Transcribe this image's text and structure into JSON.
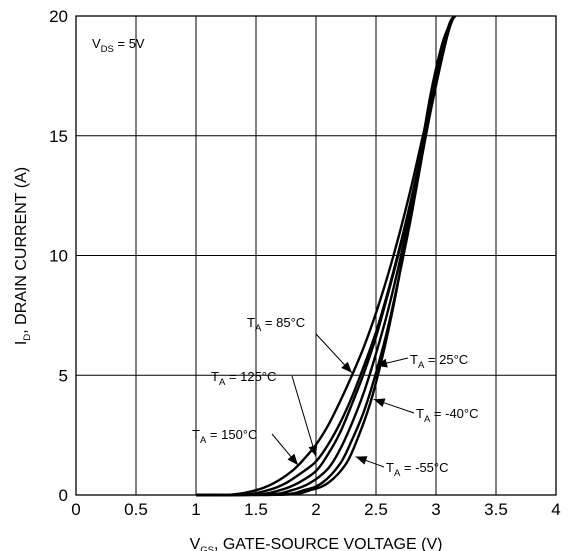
{
  "chart_data": {
    "type": "line",
    "title": "",
    "xlabel": {
      "main": "V",
      "sub": "GS",
      "rest": ", GATE-SOURCE VOLTAGE (V)"
    },
    "ylabel": {
      "main": "I",
      "sub": "D",
      "rest": ", DRAIN CURRENT (A)"
    },
    "xlim": [
      0,
      4
    ],
    "ylim": [
      0,
      20
    ],
    "x_ticks": [
      "0",
      "0.5",
      "1",
      "1.5",
      "2",
      "2.5",
      "3",
      "3.5",
      "4"
    ],
    "y_ticks": [
      "0",
      "5",
      "10",
      "15",
      "20"
    ],
    "grid": true,
    "condition": {
      "main": "V",
      "sub": "DS",
      "rest": " = 5V"
    },
    "series": [
      {
        "name": "T_A = 150°C",
        "label": {
          "main": "T",
          "sub": "A",
          "rest": " = 150°C"
        },
        "x": [
          1.0,
          1.3,
          1.5,
          1.65,
          1.8,
          1.9,
          2.0,
          2.1,
          2.2,
          2.3,
          2.4,
          2.5,
          2.6,
          2.7,
          2.8,
          2.9,
          3.0,
          3.1,
          3.15
        ],
        "y": [
          0.0,
          0.02,
          0.2,
          0.5,
          1.0,
          1.5,
          2.1,
          2.9,
          3.9,
          5.0,
          6.2,
          7.6,
          9.2,
          11.0,
          13.0,
          15.2,
          17.3,
          19.3,
          20.0
        ]
      },
      {
        "name": "T_A = 125°C",
        "label": {
          "main": "T",
          "sub": "A",
          "rest": " = 125°C"
        },
        "x": [
          1.0,
          1.4,
          1.6,
          1.75,
          1.9,
          2.0,
          2.1,
          2.2,
          2.3,
          2.4,
          2.5,
          2.6,
          2.7,
          2.8,
          2.9,
          3.0,
          3.1,
          3.15
        ],
        "y": [
          0.0,
          0.02,
          0.2,
          0.5,
          1.0,
          1.4,
          2.1,
          3.0,
          4.1,
          5.4,
          6.8,
          8.5,
          10.4,
          12.5,
          14.8,
          17.2,
          19.3,
          20.0
        ]
      },
      {
        "name": "T_A = 85°C",
        "label": {
          "main": "T",
          "sub": "A",
          "rest": " = 85°C"
        },
        "x": [
          1.0,
          1.5,
          1.7,
          1.85,
          2.0,
          2.1,
          2.2,
          2.3,
          2.4,
          2.5,
          2.6,
          2.7,
          2.8,
          2.9,
          3.0,
          3.1,
          3.15
        ],
        "y": [
          0.0,
          0.02,
          0.2,
          0.5,
          1.0,
          1.7,
          2.6,
          3.8,
          5.1,
          6.6,
          8.4,
          10.3,
          12.4,
          14.7,
          17.1,
          19.3,
          20.0
        ]
      },
      {
        "name": "T_A = 25°C",
        "label": {
          "main": "T",
          "sub": "A",
          "rest": " = 25°C"
        },
        "x": [
          1.0,
          1.6,
          1.8,
          1.95,
          2.1,
          2.2,
          2.3,
          2.4,
          2.5,
          2.6,
          2.7,
          2.8,
          2.9,
          3.0,
          3.1,
          3.15
        ],
        "y": [
          0.0,
          0.02,
          0.2,
          0.5,
          1.1,
          1.9,
          3.0,
          4.3,
          5.9,
          7.7,
          9.8,
          12.1,
          14.6,
          17.2,
          19.3,
          20.0
        ]
      },
      {
        "name": "T_A = -40°C",
        "label": {
          "main": "T",
          "sub": "A",
          "rest": " = -40°C"
        },
        "x": [
          1.0,
          1.7,
          1.9,
          2.05,
          2.2,
          2.3,
          2.4,
          2.5,
          2.6,
          2.7,
          2.8,
          2.9,
          3.0,
          3.1,
          3.15
        ],
        "y": [
          0.0,
          0.02,
          0.2,
          0.5,
          1.3,
          2.3,
          3.5,
          5.1,
          7.0,
          9.3,
          11.8,
          14.6,
          17.4,
          19.5,
          20.0
        ]
      },
      {
        "name": "T_A = -55°C",
        "label": {
          "main": "T",
          "sub": "A",
          "rest": " = -55°C"
        },
        "x": [
          1.0,
          1.75,
          1.95,
          2.1,
          2.25,
          2.35,
          2.45,
          2.55,
          2.65,
          2.75,
          2.85,
          2.95,
          3.05,
          3.12,
          3.16
        ],
        "y": [
          0.0,
          0.02,
          0.2,
          0.5,
          1.3,
          2.4,
          3.8,
          5.7,
          8.0,
          10.7,
          13.6,
          16.6,
          18.8,
          19.7,
          20.0
        ]
      }
    ],
    "annotations": [
      {
        "series": "T_A = 85°C",
        "at": [
          2.3,
          5.1
        ],
        "label_side": "upper-left"
      },
      {
        "series": "T_A = 125°C",
        "at": [
          2.0,
          1.6
        ],
        "label_side": "left"
      },
      {
        "series": "T_A = 150°C",
        "at": [
          1.85,
          1.25
        ],
        "label_side": "left"
      },
      {
        "series": "T_A = 25°C",
        "at": [
          2.5,
          5.4
        ],
        "label_side": "right"
      },
      {
        "series": "T_A = -40°C",
        "at": [
          2.48,
          4.0
        ],
        "label_side": "right"
      },
      {
        "series": "T_A = -55°C",
        "at": [
          2.33,
          1.6
        ],
        "label_side": "right"
      }
    ],
    "colors": {
      "line": "#000000",
      "grid": "#000000"
    }
  }
}
